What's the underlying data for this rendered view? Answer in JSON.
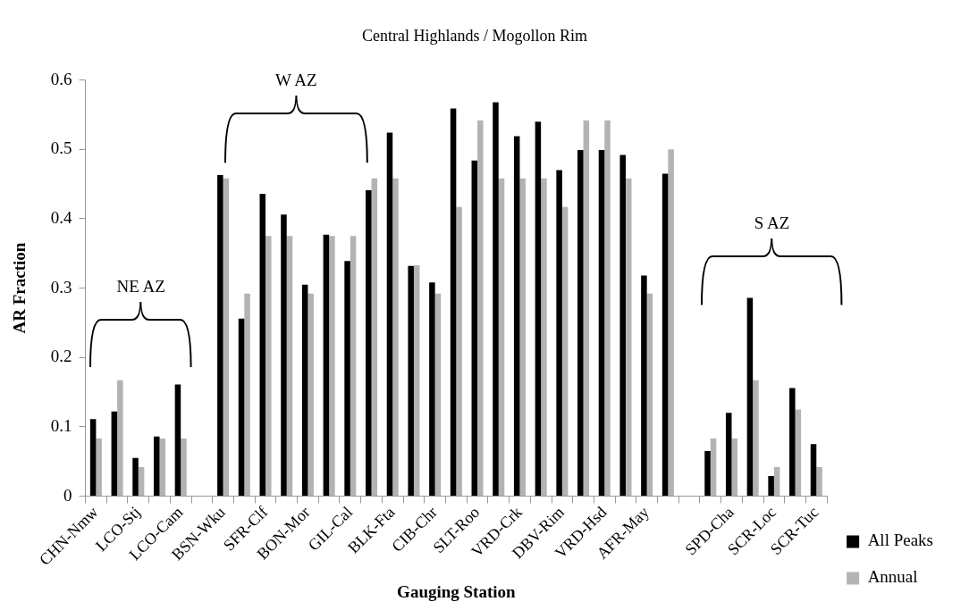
{
  "chart_data": {
    "type": "bar",
    "title": "Central Highlands / Mogollon Rim",
    "xlabel": "Gauging Station",
    "ylabel": "AR Fraction",
    "categories": [
      "CHN-Nmw",
      null,
      "LCO-Stj",
      null,
      "LCO-Cam",
      null,
      "BSN-Wku",
      null,
      "SFR-Clf",
      null,
      "BON-Mor",
      null,
      "GIL-Cal",
      null,
      "BLK-Fta",
      null,
      "CIB-Chr",
      null,
      "SLT-Roo",
      null,
      "VRD-Crk",
      null,
      "DBV-Rim",
      null,
      "VRD-Hsd",
      null,
      "AFR-May",
      null,
      null,
      null,
      "SPD-Cha",
      null,
      "SCR-Loc",
      null,
      "SCR-Tuc"
    ],
    "series": [
      {
        "name": "All Peaks",
        "color": "#000000",
        "values": [
          0.111,
          0.122,
          0.055,
          0.086,
          0.161,
          null,
          0.463,
          0.256,
          0.436,
          0.406,
          0.305,
          0.377,
          0.339,
          0.441,
          0.524,
          0.332,
          0.308,
          0.559,
          0.484,
          0.568,
          0.519,
          0.54,
          0.47,
          0.499,
          0.499,
          0.492,
          0.318,
          0.465,
          null,
          0.065,
          0.12,
          0.286,
          0.029,
          0.156,
          0.075
        ]
      },
      {
        "name": "Annual",
        "color": "#b3b3b3",
        "values": [
          0.083,
          0.167,
          0.042,
          0.083,
          0.083,
          null,
          0.458,
          0.292,
          0.375,
          0.375,
          0.292,
          0.375,
          0.375,
          0.458,
          0.458,
          0.333,
          0.292,
          0.417,
          0.542,
          0.458,
          0.458,
          0.458,
          0.417,
          0.542,
          0.542,
          0.458,
          0.292,
          0.5,
          null,
          0.083,
          0.083,
          0.167,
          0.042,
          0.125,
          0.042
        ]
      }
    ],
    "ylim": [
      0,
      0.6
    ],
    "yticks": [
      0,
      0.1,
      0.2,
      0.3,
      0.4,
      0.5,
      0.6
    ],
    "legend": "right",
    "annotations": [
      "NE AZ",
      "W AZ",
      "S AZ"
    ]
  }
}
